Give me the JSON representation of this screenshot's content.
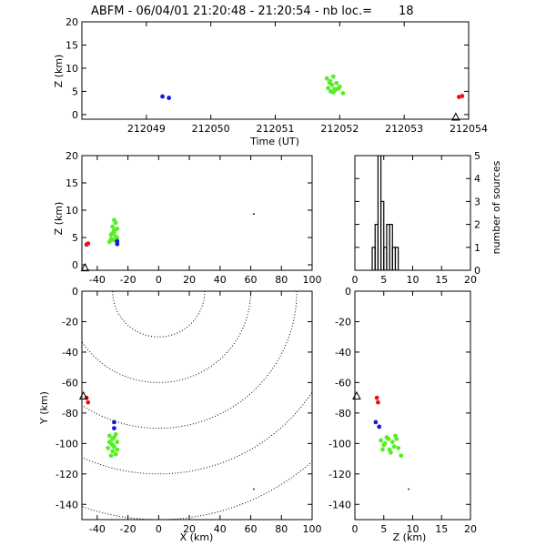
{
  "figure": {
    "title": "ABFM - 06/04/01 21:20:48 - 21:20:54 - nb loc.=       18",
    "background": "#ffffff",
    "colors": {
      "axes": "#000000",
      "green": "#55ee22",
      "blue": "#1a1ad6",
      "red": "#ee1111"
    }
  },
  "chart_data": [
    {
      "id": "time_height",
      "type": "scatter",
      "title": "",
      "xlabel": "Time (UT)",
      "ylabel": "Z (km)",
      "xlim": [
        212048.0,
        212054.0
      ],
      "ylim": [
        -1,
        20
      ],
      "xticks": [
        212049,
        212050,
        212051,
        212052,
        212053,
        212054
      ],
      "yticks": [
        0,
        5,
        10,
        15,
        20
      ],
      "markers": [
        {
          "symbol": "triangle",
          "x": 212053.8,
          "y": -0.6
        }
      ],
      "series": [
        {
          "color": "green",
          "points": [
            [
              212051.8,
              7.8
            ],
            [
              212051.85,
              7.2
            ],
            [
              212051.88,
              6.4
            ],
            [
              212051.9,
              8.2
            ],
            [
              212051.82,
              5.7
            ],
            [
              212051.86,
              5.0
            ],
            [
              212051.92,
              5.5
            ],
            [
              212051.95,
              6.8
            ],
            [
              212051.9,
              4.8
            ],
            [
              212051.98,
              5.6
            ],
            [
              212052.0,
              6.0
            ],
            [
              212052.05,
              4.6
            ],
            [
              212051.84,
              6.9
            ],
            [
              212051.93,
              5.3
            ]
          ]
        },
        {
          "color": "blue",
          "points": [
            [
              212049.25,
              3.9
            ],
            [
              212049.35,
              3.6
            ]
          ]
        },
        {
          "color": "red",
          "points": [
            [
              212053.85,
              3.8
            ],
            [
              212053.9,
              4.0
            ]
          ]
        }
      ]
    },
    {
      "id": "x_height",
      "type": "scatter",
      "title": "",
      "xlabel": "",
      "ylabel": "Z (km)",
      "xlim": [
        -50,
        100
      ],
      "ylim": [
        -1,
        20
      ],
      "xticks": [
        -40,
        -20,
        0,
        20,
        40,
        60,
        80,
        100
      ],
      "yticks": [
        0,
        5,
        10,
        15,
        20
      ],
      "markers": [
        {
          "symbol": "triangle",
          "x": -48,
          "y": -0.6
        },
        {
          "symbol": "dot",
          "x": 62,
          "y": 9.3
        }
      ],
      "series": [
        {
          "color": "green",
          "points": [
            [
              -29,
              8.2
            ],
            [
              -28,
              7.7
            ],
            [
              -30,
              7.0
            ],
            [
              -27,
              6.6
            ],
            [
              -29,
              6.0
            ],
            [
              -31,
              5.5
            ],
            [
              -28,
              5.2
            ],
            [
              -30,
              4.6
            ],
            [
              -32,
              4.2
            ],
            [
              -27,
              4.9
            ],
            [
              -29,
              6.3
            ],
            [
              -30,
              5.8
            ],
            [
              -28,
              4.4
            ],
            [
              -31,
              4.7
            ]
          ]
        },
        {
          "color": "blue",
          "points": [
            [
              -27,
              3.8
            ],
            [
              -27,
              4.3
            ]
          ]
        },
        {
          "color": "red",
          "points": [
            [
              -47,
              3.7
            ],
            [
              -46,
              3.9
            ]
          ]
        }
      ]
    },
    {
      "id": "altitude_histogram",
      "type": "bar",
      "title": "",
      "xlabel": "",
      "ylabel": "number of sources",
      "xlim": [
        0,
        20
      ],
      "ylim": [
        0,
        5
      ],
      "xticks": [
        0,
        5,
        10,
        15,
        20
      ],
      "yticks": [
        0,
        1,
        2,
        3,
        4,
        5
      ],
      "bin_edges": [
        3,
        3.5,
        4,
        4.5,
        5,
        5.5,
        6,
        6.5,
        7,
        7.5,
        8
      ],
      "values": [
        1,
        2,
        5,
        3,
        1,
        2,
        2,
        1,
        1,
        0
      ]
    },
    {
      "id": "plan_view",
      "type": "scatter",
      "title": "",
      "xlabel": "X (km)",
      "ylabel": "Y (km)",
      "xlim": [
        -50,
        100
      ],
      "ylim": [
        -150,
        0
      ],
      "xticks": [
        -40,
        -20,
        0,
        20,
        40,
        60,
        80,
        100
      ],
      "yticks": [
        0,
        -20,
        -40,
        -60,
        -80,
        -100,
        -120,
        -140
      ],
      "range_rings": {
        "center_x": 0,
        "center_y": 0,
        "radii": [
          30,
          60,
          90,
          120,
          150
        ]
      },
      "markers": [
        {
          "symbol": "triangle",
          "x": -49,
          "y": -69
        },
        {
          "symbol": "dot",
          "x": 62,
          "y": -130
        }
      ],
      "series": [
        {
          "color": "green",
          "points": [
            [
              -32,
              -95
            ],
            [
              -30,
              -97
            ],
            [
              -28,
              -94
            ],
            [
              -31,
              -100
            ],
            [
              -29,
              -102
            ],
            [
              -27,
              -99
            ],
            [
              -33,
              -103
            ],
            [
              -30,
              -105
            ],
            [
              -28,
              -107
            ],
            [
              -31,
              -108
            ],
            [
              -29,
              -96
            ],
            [
              -32,
              -99
            ],
            [
              -27,
              -104
            ],
            [
              -30,
              -101
            ]
          ]
        },
        {
          "color": "blue",
          "points": [
            [
              -29,
              -86
            ],
            [
              -29,
              -90
            ]
          ]
        },
        {
          "color": "red",
          "points": [
            [
              -47,
              -70
            ],
            [
              -46,
              -73
            ]
          ]
        }
      ]
    },
    {
      "id": "z_y_view",
      "type": "scatter",
      "title": "",
      "xlabel": "Z (km)",
      "ylabel": "",
      "xlim": [
        0,
        20
      ],
      "ylim": [
        -150,
        0
      ],
      "xticks": [
        0,
        5,
        10,
        15,
        20
      ],
      "yticks": [
        0,
        -20,
        -40,
        -60,
        -80,
        -100,
        -120,
        -140
      ],
      "markers": [
        {
          "symbol": "triangle",
          "x": 0.3,
          "y": -69
        },
        {
          "symbol": "dot",
          "x": 9.3,
          "y": -130
        }
      ],
      "series": [
        {
          "color": "green",
          "points": [
            [
              4.5,
              -98
            ],
            [
              5.0,
              -101
            ],
            [
              5.5,
              -96
            ],
            [
              6.0,
              -104
            ],
            [
              6.5,
              -99
            ],
            [
              7.0,
              -95
            ],
            [
              7.5,
              -103
            ],
            [
              8.0,
              -108
            ],
            [
              4.8,
              -104
            ],
            [
              5.8,
              -97
            ],
            [
              6.8,
              -102
            ],
            [
              5.2,
              -100
            ],
            [
              7.2,
              -97
            ],
            [
              6.2,
              -106
            ]
          ]
        },
        {
          "color": "blue",
          "points": [
            [
              3.6,
              -86
            ],
            [
              4.2,
              -89
            ]
          ]
        },
        {
          "color": "red",
          "points": [
            [
              3.8,
              -70
            ],
            [
              4.0,
              -73
            ]
          ]
        }
      ]
    }
  ]
}
